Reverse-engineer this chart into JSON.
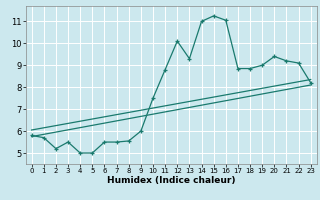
{
  "title": "",
  "xlabel": "Humidex (Indice chaleur)",
  "ylabel": "",
  "background_color": "#cce8ee",
  "grid_color": "#ffffff",
  "line_color": "#1a7a6e",
  "xlim": [
    -0.5,
    23.5
  ],
  "ylim": [
    4.5,
    11.7
  ],
  "xticks": [
    0,
    1,
    2,
    3,
    4,
    5,
    6,
    7,
    8,
    9,
    10,
    11,
    12,
    13,
    14,
    15,
    16,
    17,
    18,
    19,
    20,
    21,
    22,
    23
  ],
  "yticks": [
    5,
    6,
    7,
    8,
    9,
    10,
    11
  ],
  "curve1_x": [
    0,
    1,
    2,
    3,
    4,
    5,
    6,
    7,
    8,
    9,
    10,
    11,
    12,
    13,
    14,
    15,
    16,
    17,
    18,
    19,
    20,
    21,
    22,
    23
  ],
  "curve1_y": [
    5.8,
    5.7,
    5.2,
    5.5,
    5.0,
    5.0,
    5.5,
    5.5,
    5.55,
    6.0,
    7.5,
    8.8,
    10.1,
    9.3,
    11.0,
    11.25,
    11.05,
    8.85,
    8.85,
    9.0,
    9.4,
    9.2,
    9.1,
    8.2
  ],
  "curve2_x": [
    0,
    23
  ],
  "curve2_y": [
    5.75,
    8.1
  ],
  "curve3_x": [
    0,
    23
  ],
  "curve3_y": [
    6.05,
    8.35
  ],
  "marker": "+"
}
